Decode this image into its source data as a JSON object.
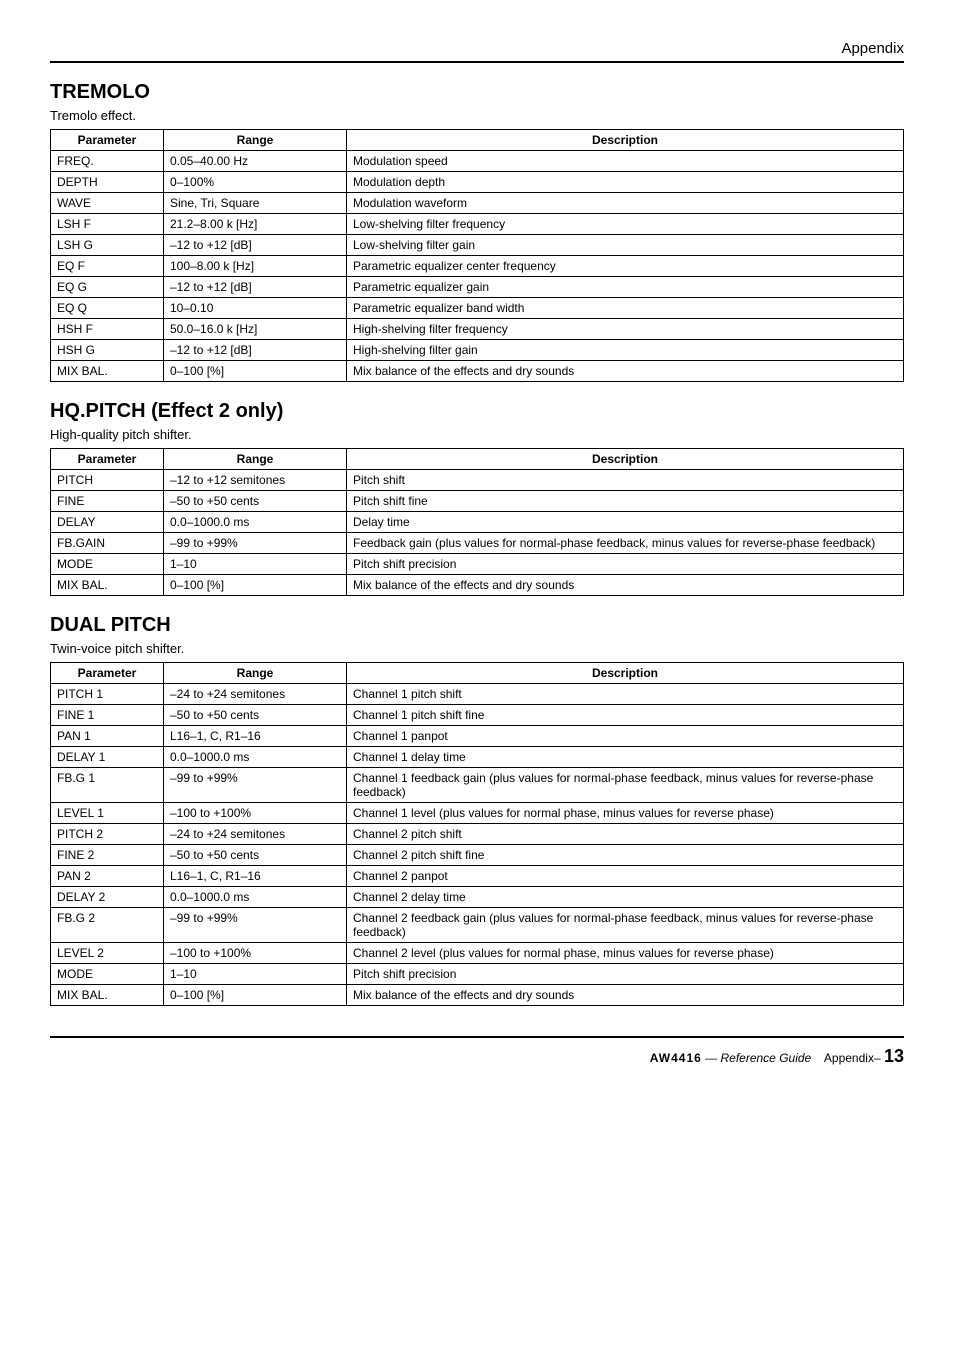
{
  "page": {
    "sectionHeader": "Appendix",
    "footerLogo": "AW4416",
    "footerRef": "— Reference Guide",
    "footerAppendix": "Appendix–",
    "footerPage": "13"
  },
  "effects": [
    {
      "title": "TREMOLO",
      "subtitle": "Tremolo effect.",
      "headers": [
        "Parameter",
        "Range",
        "Description"
      ],
      "rows": [
        [
          "FREQ.",
          "0.05–40.00 Hz",
          "Modulation speed"
        ],
        [
          "DEPTH",
          "0–100%",
          "Modulation depth"
        ],
        [
          "WAVE",
          "Sine, Tri, Square",
          "Modulation waveform"
        ],
        [
          "LSH F",
          "21.2–8.00 k [Hz]",
          "Low-shelving filter frequency"
        ],
        [
          "LSH G",
          "–12 to +12 [dB]",
          "Low-shelving filter gain"
        ],
        [
          "EQ F",
          "100–8.00 k [Hz]",
          "Parametric equalizer center frequency"
        ],
        [
          "EQ G",
          "–12 to +12 [dB]",
          "Parametric equalizer gain"
        ],
        [
          "EQ Q",
          "10–0.10",
          "Parametric equalizer band width"
        ],
        [
          "HSH F",
          "50.0–16.0 k [Hz]",
          "High-shelving filter frequency"
        ],
        [
          "HSH G",
          "–12 to +12 [dB]",
          "High-shelving filter gain"
        ],
        [
          "MIX BAL.",
          "0–100 [%]",
          "Mix balance of the effects and dry sounds"
        ]
      ]
    },
    {
      "title": "HQ.PITCH (Effect 2 only)",
      "subtitle": "High-quality pitch shifter.",
      "headers": [
        "Parameter",
        "Range",
        "Description"
      ],
      "rows": [
        [
          "PITCH",
          "–12 to +12 semitones",
          "Pitch shift"
        ],
        [
          "FINE",
          "–50 to +50 cents",
          "Pitch shift fine"
        ],
        [
          "DELAY",
          "0.0–1000.0 ms",
          "Delay time"
        ],
        [
          "FB.GAIN",
          "–99 to +99%",
          "Feedback gain (plus values for normal-phase feedback, minus values for reverse-phase feedback)"
        ],
        [
          "MODE",
          "1–10",
          "Pitch shift precision"
        ],
        [
          "MIX BAL.",
          "0–100 [%]",
          "Mix balance of the effects and dry sounds"
        ]
      ]
    },
    {
      "title": "DUAL PITCH",
      "subtitle": "Twin-voice pitch shifter.",
      "headers": [
        "Parameter",
        "Range",
        "Description"
      ],
      "rows": [
        [
          "PITCH 1",
          "–24 to +24 semitones",
          "Channel 1 pitch shift"
        ],
        [
          "FINE 1",
          "–50 to +50 cents",
          "Channel 1 pitch shift fine"
        ],
        [
          "PAN 1",
          "L16–1, C, R1–16",
          "Channel 1 panpot"
        ],
        [
          "DELAY 1",
          "0.0–1000.0 ms",
          "Channel 1 delay time"
        ],
        [
          "FB.G 1",
          "–99 to +99%",
          "Channel 1 feedback gain (plus values for normal-phase feedback, minus values for reverse-phase feedback)"
        ],
        [
          "LEVEL 1",
          "–100 to +100%",
          "Channel 1 level (plus values for normal phase, minus values for reverse phase)"
        ],
        [
          "PITCH 2",
          "–24 to +24 semitones",
          "Channel 2 pitch shift"
        ],
        [
          "FINE 2",
          "–50 to +50 cents",
          "Channel 2 pitch shift fine"
        ],
        [
          "PAN 2",
          "L16–1, C, R1–16",
          "Channel 2 panpot"
        ],
        [
          "DELAY 2",
          "0.0–1000.0 ms",
          "Channel 2 delay time"
        ],
        [
          "FB.G 2",
          "–99 to +99%",
          "Channel 2 feedback gain (plus values for normal-phase feedback, minus values for reverse-phase feedback)"
        ],
        [
          "LEVEL 2",
          "–100 to +100%",
          "Channel 2 level (plus values for normal phase, minus values for reverse phase)"
        ],
        [
          "MODE",
          "1–10",
          "Pitch shift precision"
        ],
        [
          "MIX BAL.",
          "0–100 [%]",
          "Mix balance of the effects and dry sounds"
        ]
      ]
    }
  ]
}
